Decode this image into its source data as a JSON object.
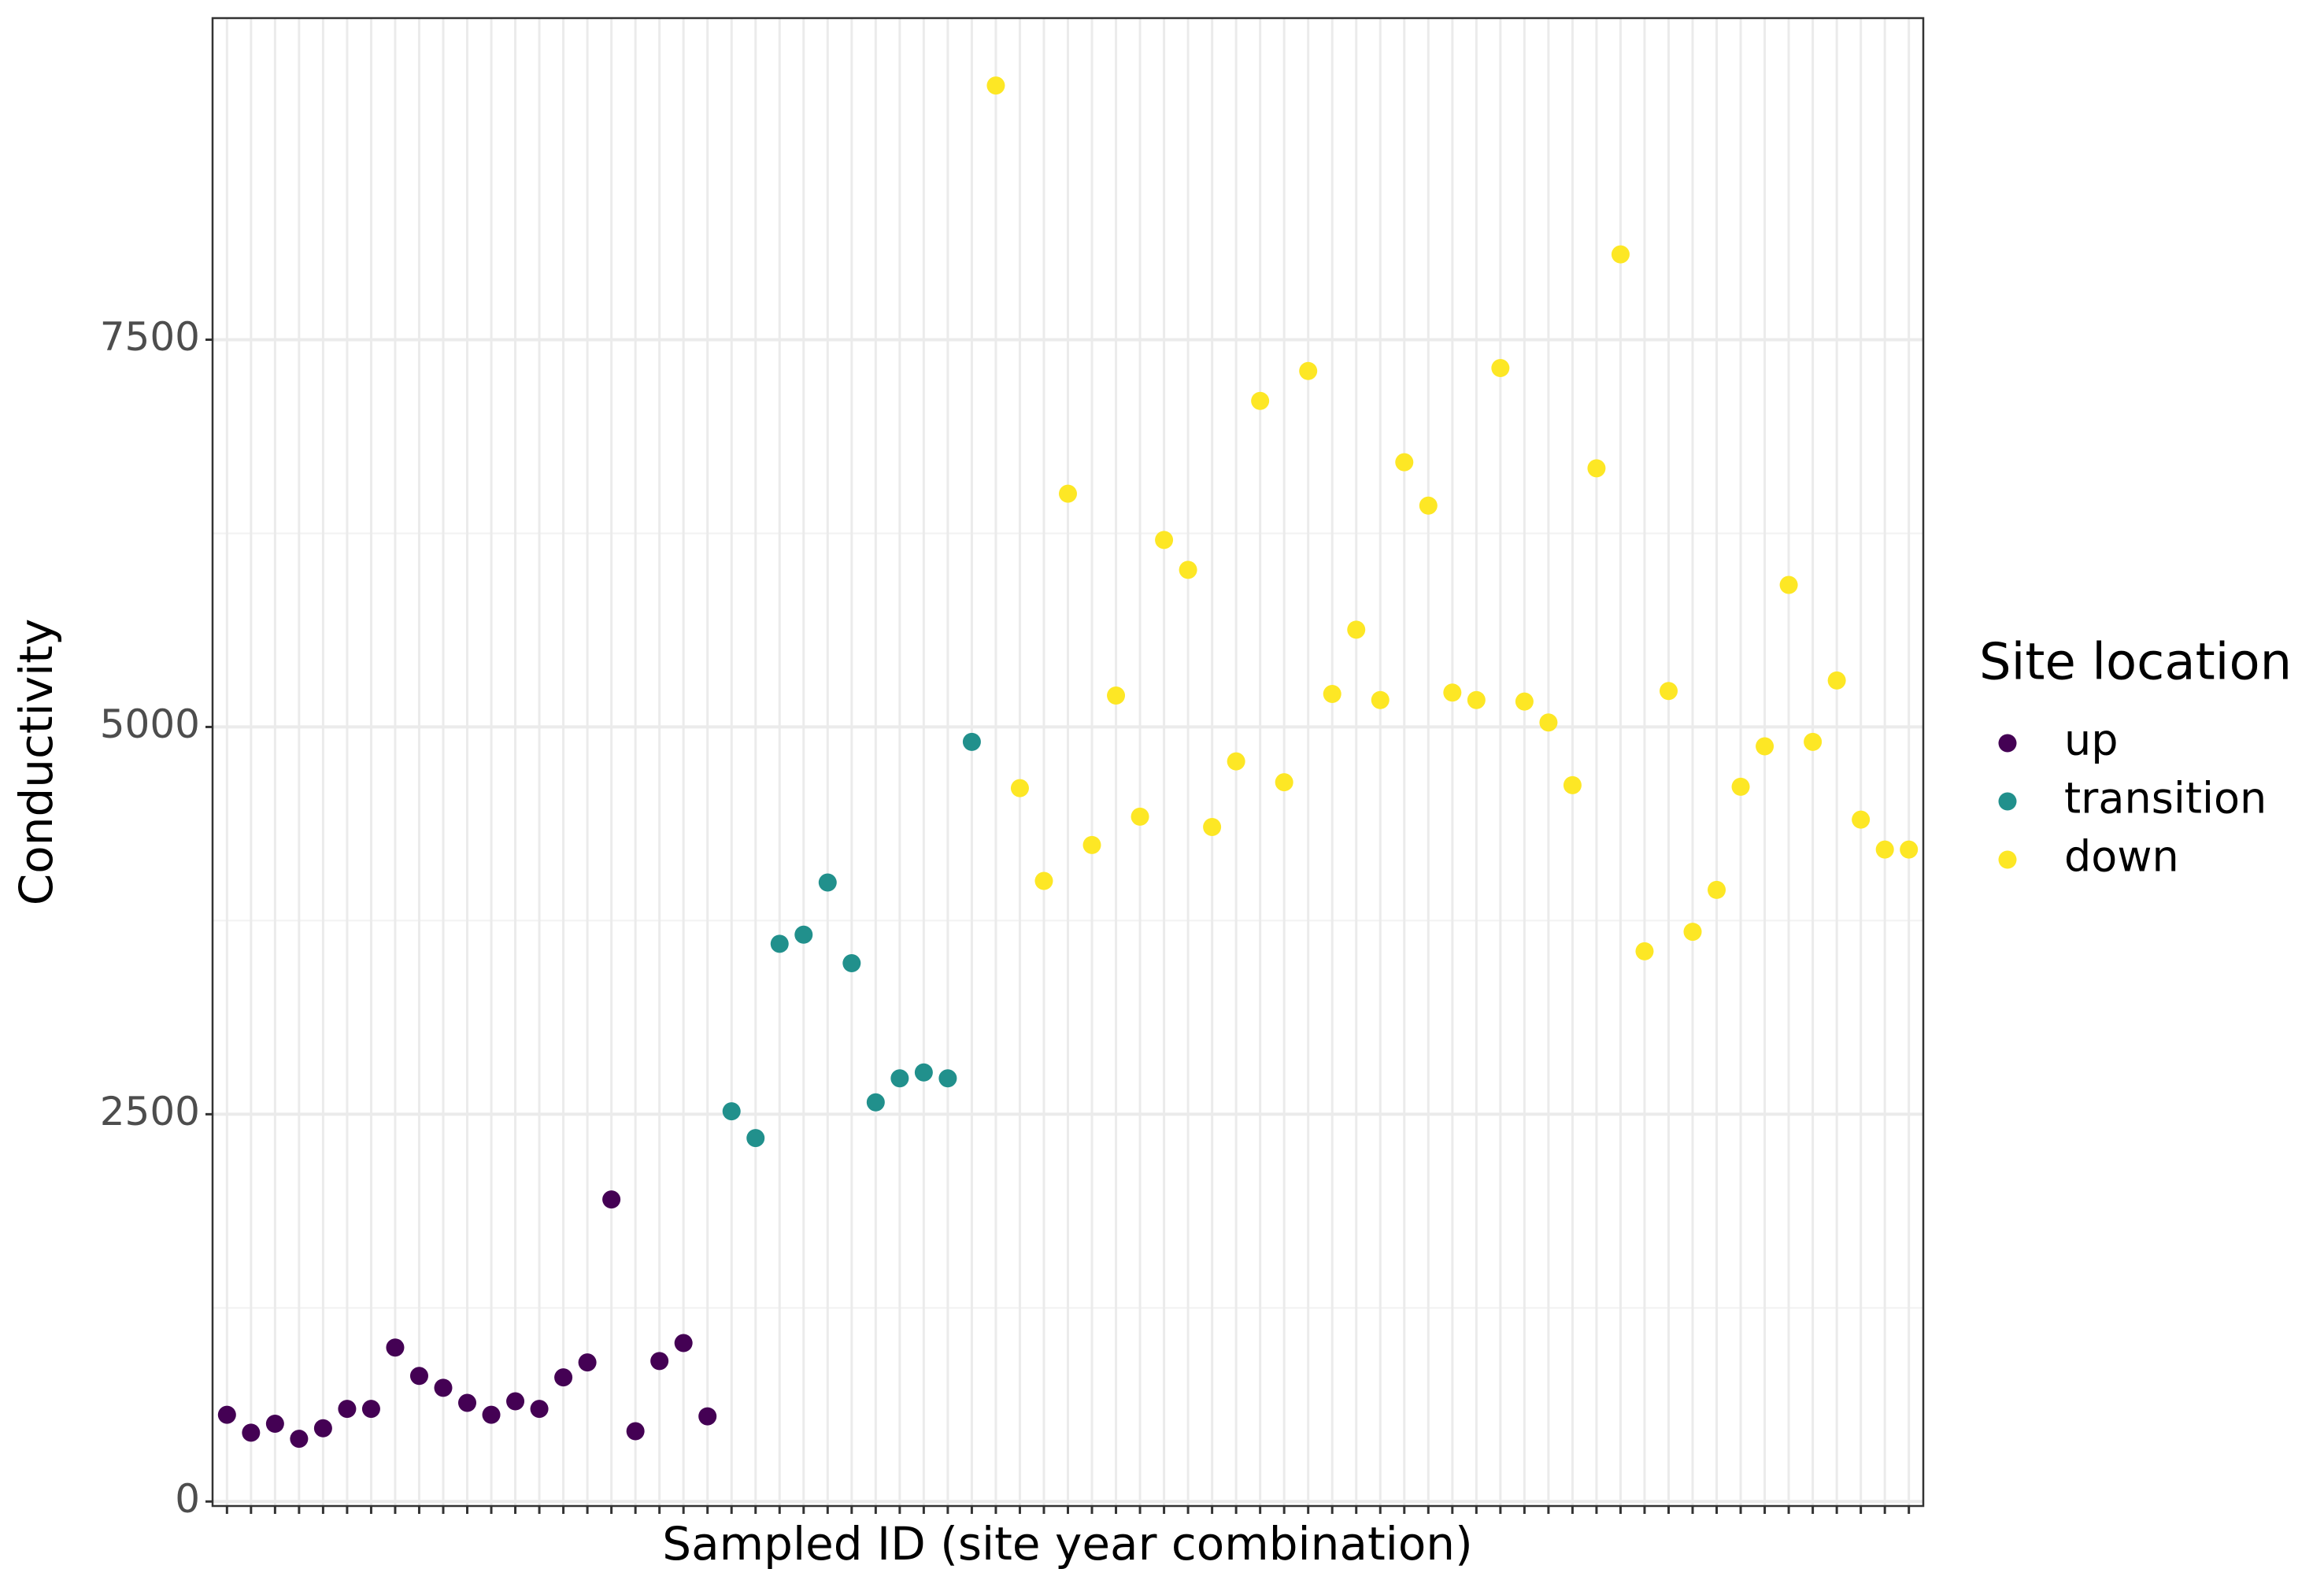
{
  "chart_data": {
    "type": "scatter",
    "x_label": "Sampled ID (site year combination)",
    "y_label": "Conductivity",
    "legend_title": "Site location",
    "legend_position": "right",
    "grid": true,
    "ylim": [
      -29,
      9576
    ],
    "yticks": [
      0,
      2500,
      5000,
      7500
    ],
    "categories": [
      null,
      null,
      null,
      null,
      null,
      null,
      null,
      null,
      null,
      null,
      null,
      null,
      null,
      null,
      null,
      null,
      null,
      null,
      null,
      null,
      null,
      null,
      null,
      null,
      null,
      null,
      null,
      null,
      null,
      null,
      null,
      null,
      null,
      null,
      null,
      null,
      null,
      null,
      null,
      null,
      null,
      null,
      null,
      null,
      null,
      null,
      null,
      null,
      null,
      null,
      null,
      null,
      null,
      null,
      null,
      null,
      null,
      null,
      null,
      null,
      null,
      null,
      null,
      null,
      null,
      null,
      null,
      null,
      null,
      null,
      null
    ],
    "series": [
      {
        "name": "up",
        "color": "#440154",
        "values": [
          560,
          444,
          502,
          405,
          473,
          598,
          598,
          994,
          811,
          734,
          637,
          560,
          647,
          598,
          801,
          898,
          1950,
          454,
          907,
          1023,
          550,
          null,
          null,
          null,
          null,
          null,
          null,
          null,
          null,
          null,
          null,
          null,
          null,
          null,
          null,
          null,
          null,
          null,
          null,
          null,
          null,
          null,
          null,
          null,
          null,
          null,
          null,
          null,
          null,
          null,
          null,
          null,
          null,
          null,
          null,
          null,
          null,
          null,
          null,
          null,
          null,
          null,
          null,
          null,
          null,
          null,
          null,
          null,
          null,
          null,
          null
        ]
      },
      {
        "name": "transition",
        "color": "#21908C",
        "values": [
          null,
          null,
          null,
          null,
          null,
          null,
          null,
          null,
          null,
          null,
          null,
          null,
          null,
          null,
          null,
          null,
          null,
          null,
          null,
          null,
          null,
          2519,
          2346,
          3600,
          3659,
          3996,
          3475,
          2577,
          2732,
          2770,
          2732,
          4904,
          null,
          null,
          null,
          null,
          null,
          null,
          null,
          null,
          null,
          null,
          null,
          null,
          null,
          null,
          null,
          null,
          null,
          null,
          null,
          null,
          null,
          null,
          null,
          null,
          null,
          null,
          null,
          null,
          null,
          null,
          null,
          null,
          null,
          null,
          null,
          null,
          null,
          null,
          null
        ]
      },
      {
        "name": "down",
        "color": "#FDE725",
        "values": [
          null,
          null,
          null,
          null,
          null,
          null,
          null,
          null,
          null,
          null,
          null,
          null,
          null,
          null,
          null,
          null,
          null,
          null,
          null,
          null,
          null,
          null,
          null,
          null,
          null,
          null,
          null,
          null,
          null,
          null,
          null,
          null,
          9141,
          4605,
          4006,
          6506,
          4238,
          5203,
          4421,
          6207,
          6014,
          4354,
          4778,
          7105,
          4643,
          7298,
          5213,
          5628,
          5174,
          6709,
          6429,
          5222,
          5174,
          7317,
          5164,
          5029,
          4624,
          6670,
          8051,
          3552,
          5232,
          3678,
          3948,
          4614,
          4875,
          5917,
          4904,
          5300,
          4402,
          4209,
          4209
        ]
      }
    ]
  }
}
